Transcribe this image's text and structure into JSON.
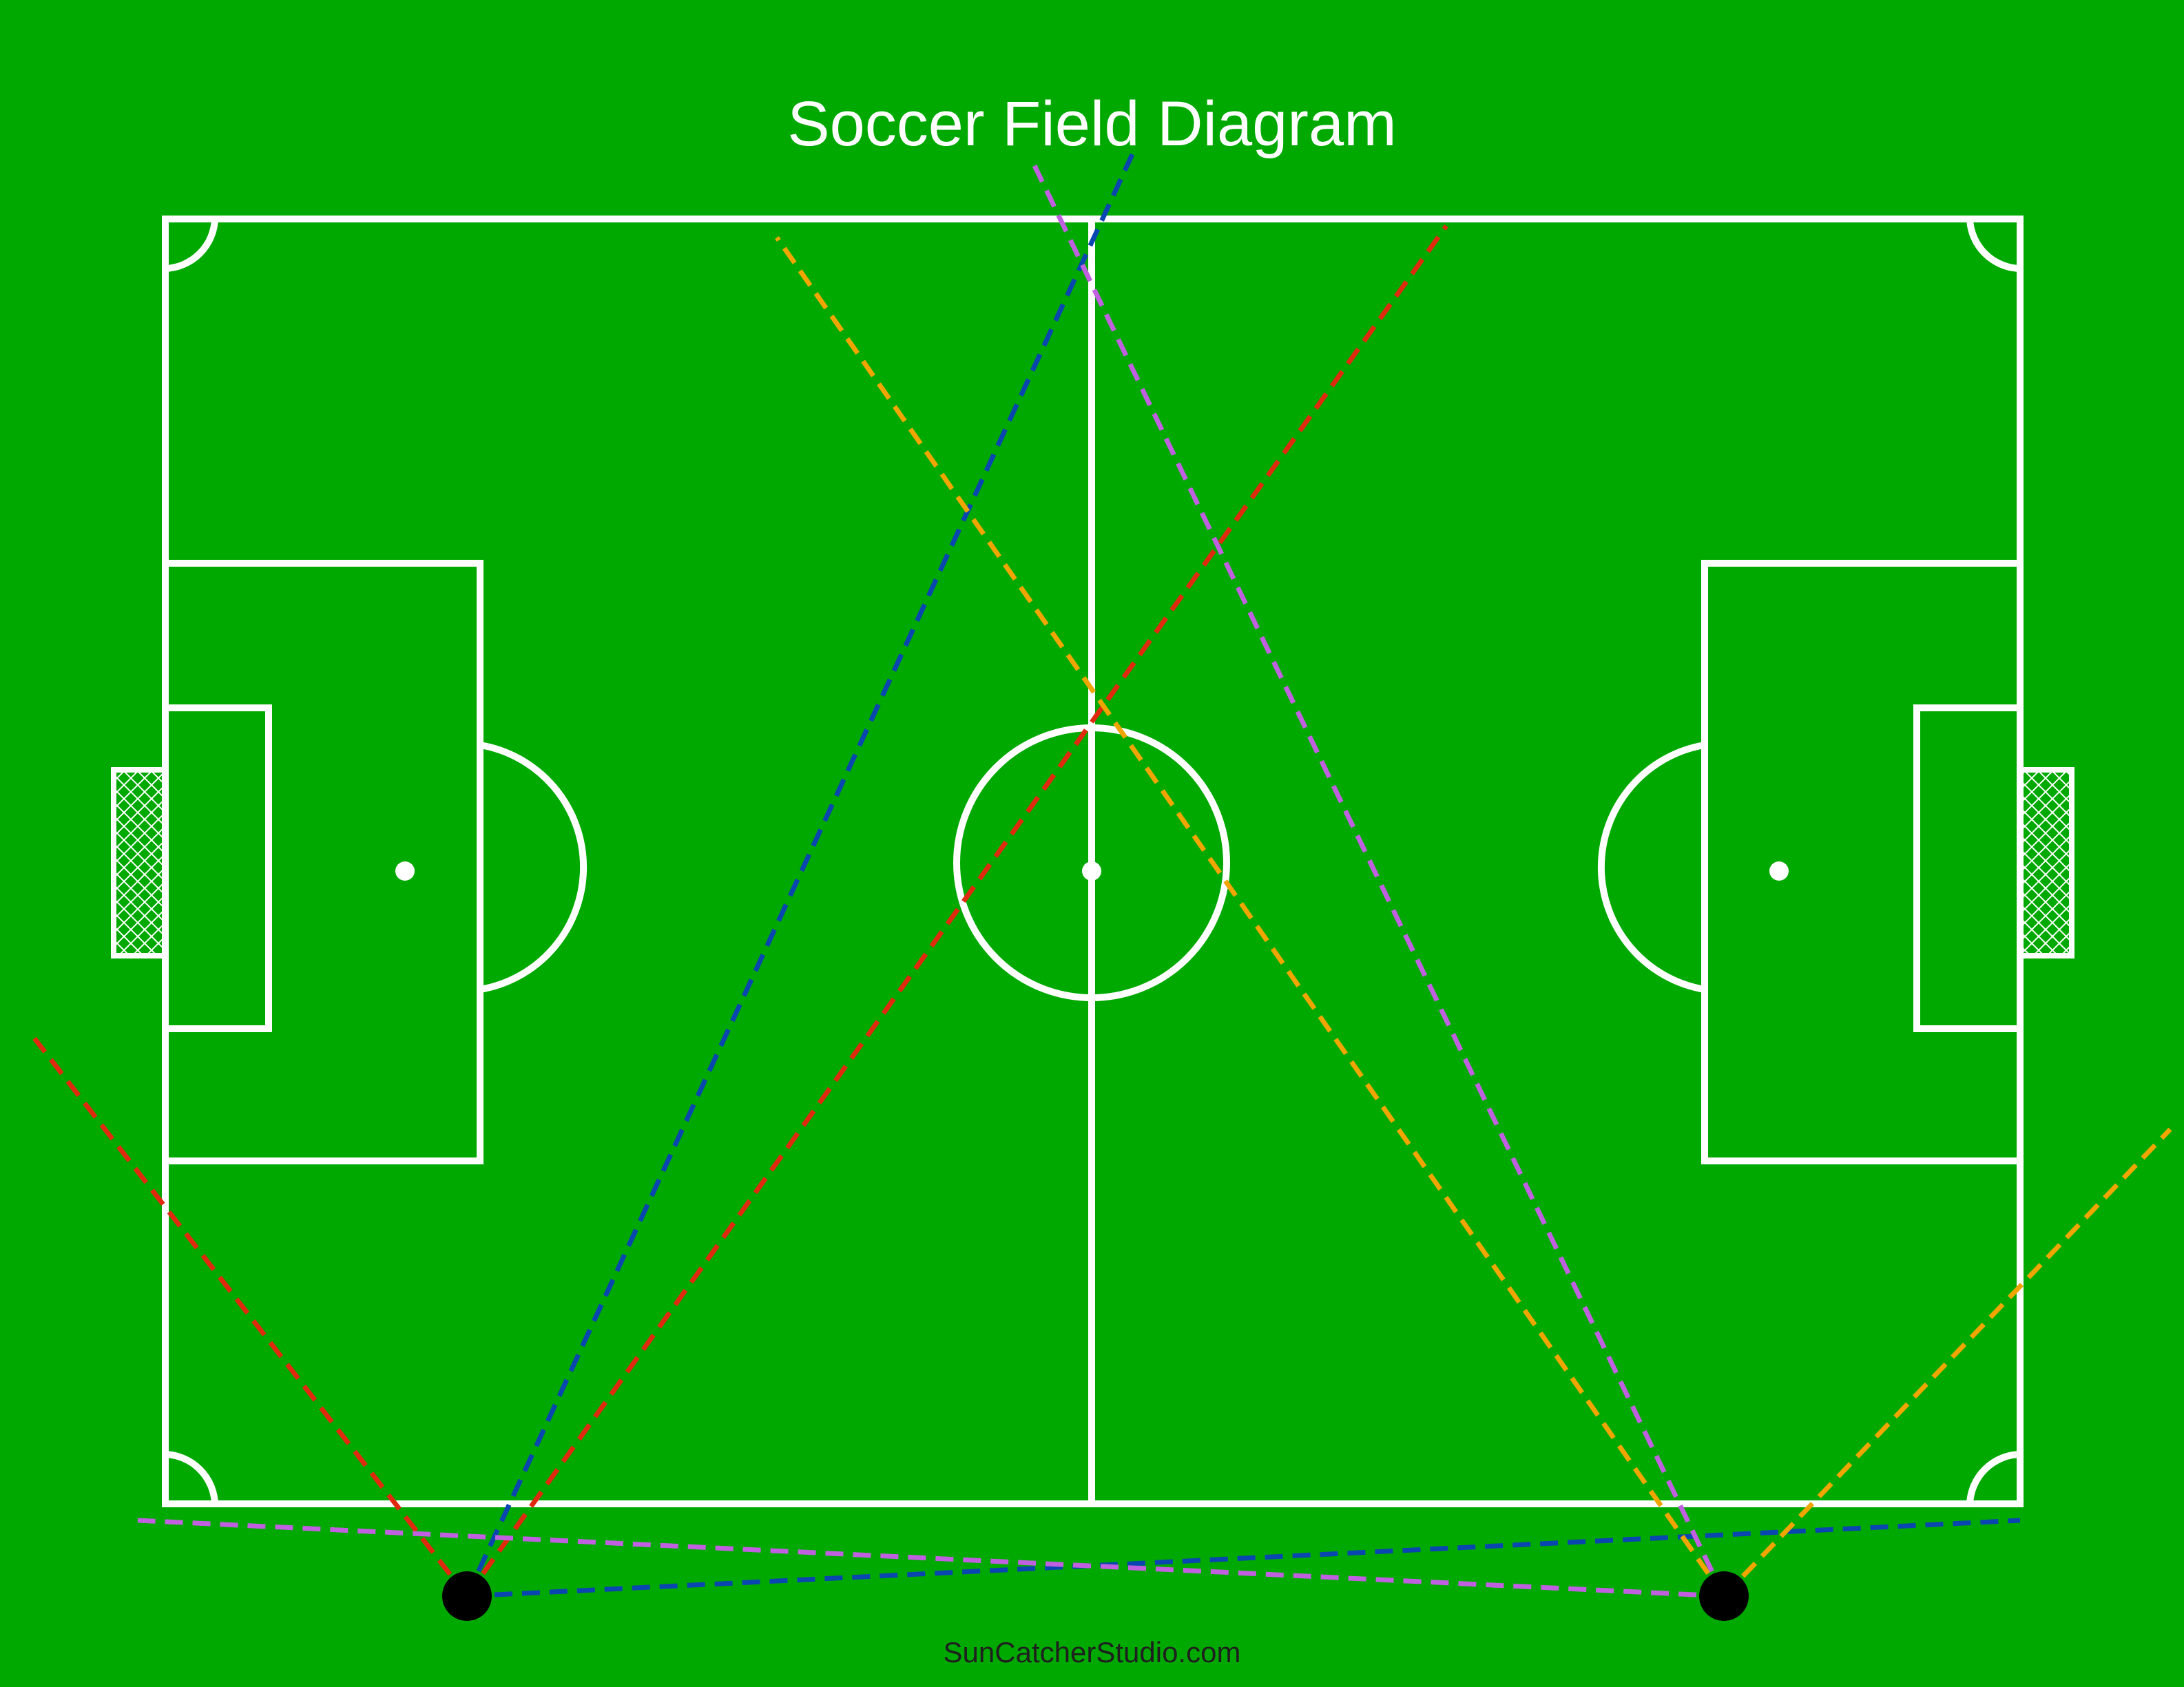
{
  "diagram": {
    "title": "Soccer Field Diagram",
    "credit": "SunCatcherStudio.com"
  },
  "colors": {
    "background": "#00a900",
    "field_lines": "#ffffff",
    "title_text": "#ffffff",
    "credit_text": "#1f1f1f",
    "camera_marker": "#000000",
    "sightline_red": "#e02a10",
    "sightline_blue": "#0a46b0",
    "sightline_orange": "#f0a500",
    "sightline_purple": "#c060e0"
  }
}
